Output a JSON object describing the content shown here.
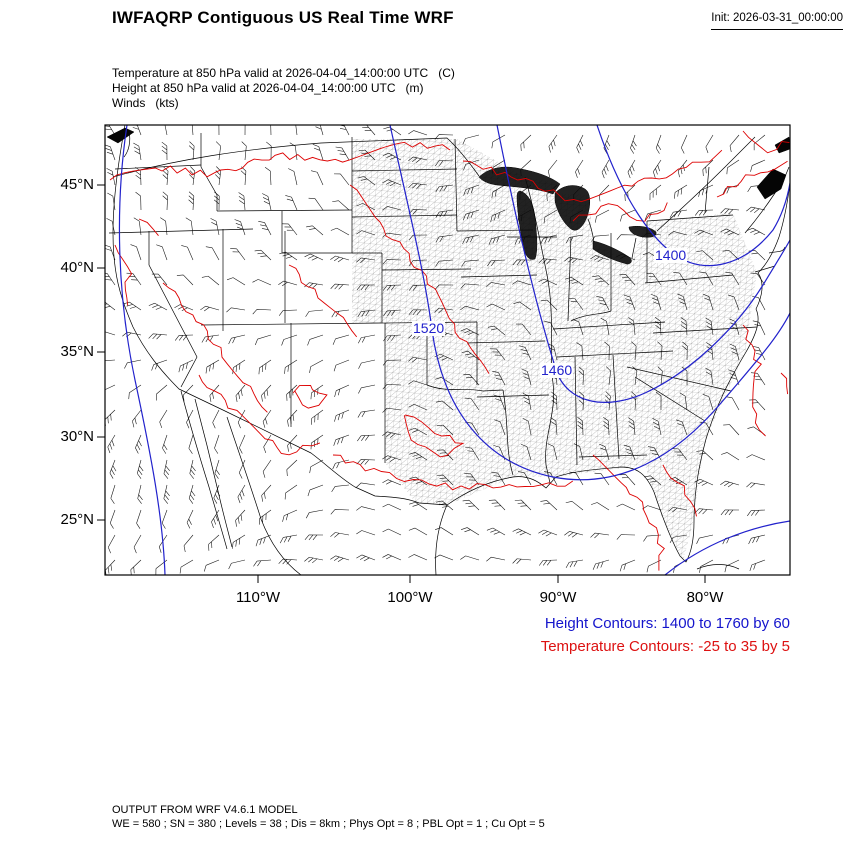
{
  "header": {
    "title": "IWFAQRP Contiguous US Real Time WRF",
    "init": "Init: 2026-03-31_00:00:00"
  },
  "fields": {
    "temperature": "Temperature at 850 hPa valid at 2026-04-04_14:00:00 UTC   (C)",
    "height": "Height at 850 hPa valid at 2026-04-04_14:00:00 UTC   (m)",
    "winds": "Winds   (kts)"
  },
  "axes": {
    "lat": [
      "45°N",
      "40°N",
      "35°N",
      "30°N",
      "25°N"
    ],
    "lon": [
      "110°W",
      "100°W",
      "90°W",
      "80°W"
    ]
  },
  "contour_labels": {
    "c1520": "1520",
    "c1460": "1460",
    "c1400": "1400"
  },
  "legend": {
    "height": "Height Contours: 1400 to 1760 by 60",
    "temperature": "Temperature Contours: -25 to 35 by 5"
  },
  "footer": {
    "line1": "OUTPUT FROM WRF V4.6.1 MODEL",
    "line2": "WE = 580 ; SN = 380 ; Levels = 38 ; Dis = 8km ; Phys Opt = 8 ; PBL Opt = 1 ; Cu Opt = 5"
  },
  "colors": {
    "height_contour": "#2222cc",
    "temperature_contour": "#dd0000",
    "legend_height": "#1414cc",
    "legend_temperature": "#dd1111"
  },
  "chart_data": {
    "type": "contour",
    "title": "IWFAQRP Contiguous US Real Time WRF",
    "region": "Contiguous US",
    "init_time": "2026-03-31_00:00:00",
    "valid_time": "2026-04-04_14:00:00 UTC",
    "level": "850 hPa",
    "fields": [
      {
        "name": "Temperature",
        "units": "C",
        "contour_min": -25,
        "contour_max": 35,
        "contour_interval": 5,
        "color": "red"
      },
      {
        "name": "Height",
        "units": "m",
        "contour_min": 1400,
        "contour_max": 1760,
        "contour_interval": 60,
        "color": "blue",
        "labeled_values": [
          1520,
          1460,
          1400
        ]
      },
      {
        "name": "Winds",
        "units": "kts",
        "style": "wind barbs",
        "color": "black"
      }
    ],
    "x_axis": {
      "label": "longitude",
      "ticks": [
        "110°W",
        "100°W",
        "90°W",
        "80°W"
      ]
    },
    "y_axis": {
      "label": "latitude",
      "ticks": [
        "45°N",
        "40°N",
        "35°N",
        "30°N",
        "25°N"
      ]
    },
    "grid": false,
    "legend_position": "below-right",
    "model_info": {
      "model": "OUTPUT FROM WRF V4.6.1 MODEL",
      "WE": 580,
      "SN": 380,
      "Levels": 38,
      "Dis": "8km",
      "PhysOpt": 8,
      "PBLOpt": 1,
      "CuOpt": 5
    }
  }
}
